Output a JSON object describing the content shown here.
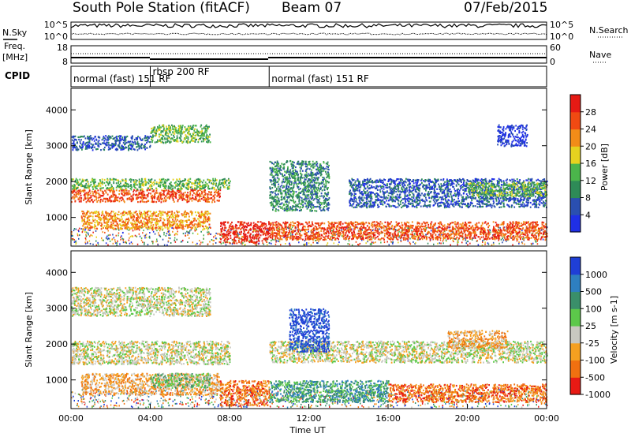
{
  "header": {
    "station": "South Pole Station (fitACF)",
    "beam": "Beam 07",
    "date": "07/Feb/2015"
  },
  "sky_panel": {
    "left_label": "N.Sky",
    "left_ticks": [
      "10^5",
      "10^0"
    ],
    "right_label": "N.Search",
    "right_ticks": [
      "10^5",
      "10^0"
    ]
  },
  "freq_panel": {
    "left_label_line1": "Freq.",
    "left_label_line2": "[MHz]",
    "left_ticks": [
      "18",
      "8"
    ],
    "right_label": "Nave",
    "right_ticks": [
      "60",
      "0"
    ]
  },
  "cpid_panel": {
    "label": "CPID",
    "segments": [
      {
        "start_hr": 0,
        "end_hr": 4,
        "label": "normal (fast) 151 RF"
      },
      {
        "start_hr": 4,
        "end_hr": 10,
        "label": "rbsp 200 RF"
      },
      {
        "start_hr": 10,
        "end_hr": 24,
        "label": "normal (fast) 151 RF"
      }
    ]
  },
  "chart_data": [
    {
      "type": "heatmap",
      "name": "power",
      "ylabel": "Slant Range [km]",
      "xlabel": "",
      "xlim": [
        0,
        24
      ],
      "ylim": [
        200,
        4600
      ],
      "yticks": [
        1000,
        2000,
        3000,
        4000
      ],
      "colorbar": {
        "label": "Power [dB]",
        "ticks": [
          4,
          8,
          12,
          16,
          20,
          24,
          28
        ],
        "levels": [
          "#1f2fe6",
          "#2a4fb0",
          "#2e8b57",
          "#4bb54b",
          "#e6d21f",
          "#f28c18",
          "#f04a12",
          "#e61a14"
        ]
      },
      "bands": [
        {
          "t0": 0,
          "t1": 7.5,
          "r0": 1450,
          "r1": 1800,
          "level": 6
        },
        {
          "t0": 0,
          "t1": 8,
          "r0": 1800,
          "r1": 2100,
          "level": 3
        },
        {
          "t0": 0,
          "t1": 4,
          "r0": 2900,
          "r1": 3300,
          "level": 1
        },
        {
          "t0": 4,
          "t1": 7,
          "r0": 3100,
          "r1": 3600,
          "level": 3
        },
        {
          "t0": 0.5,
          "t1": 7,
          "r0": 700,
          "r1": 1200,
          "level": 5
        },
        {
          "t0": 7.5,
          "t1": 10,
          "r0": 300,
          "r1": 900,
          "level": 7
        },
        {
          "t0": 10,
          "t1": 24,
          "r0": 400,
          "r1": 900,
          "level": 6
        },
        {
          "t0": 14,
          "t1": 24,
          "r0": 1300,
          "r1": 2100,
          "level": 1
        },
        {
          "t0": 20,
          "t1": 24,
          "r0": 1600,
          "r1": 2000,
          "level": 3
        },
        {
          "t0": 10,
          "t1": 13,
          "r0": 1200,
          "r1": 2600,
          "level": 2
        },
        {
          "t0": 21.5,
          "t1": 23,
          "r0": 3000,
          "r1": 3600,
          "level": 0
        }
      ]
    },
    {
      "type": "heatmap",
      "name": "velocity",
      "ylabel": "Slant Range [km]",
      "xlabel": "Time UT",
      "xlim": [
        0,
        24
      ],
      "ylim": [
        200,
        4600
      ],
      "yticks": [
        1000,
        2000,
        3000,
        4000
      ],
      "xticks": [
        "00:00",
        "04:00",
        "08:00",
        "12:00",
        "16:00",
        "20:00",
        "00:00"
      ],
      "colorbar": {
        "label": "Velocity [m s-1]",
        "ticks": [
          1000,
          500,
          100,
          25,
          -25,
          -100,
          -500,
          -1000
        ],
        "levels": [
          "#1f3fd6",
          "#2e7fc0",
          "#3a8f6a",
          "#5cc84a",
          "#c8c8c0",
          "#f5a020",
          "#f07010",
          "#e81a14"
        ]
      },
      "bands": [
        {
          "t0": 0,
          "t1": 8,
          "r0": 1450,
          "r1": 2100,
          "level": 4
        },
        {
          "t0": 10,
          "t1": 24,
          "r0": 1500,
          "r1": 2100,
          "level": 4
        },
        {
          "t0": 0,
          "t1": 7,
          "r0": 2800,
          "r1": 3600,
          "level": 4
        },
        {
          "t0": 0.5,
          "t1": 7.5,
          "r0": 600,
          "r1": 1200,
          "level": 5
        },
        {
          "t0": 7.5,
          "t1": 10,
          "r0": 300,
          "r1": 1000,
          "level": 6
        },
        {
          "t0": 10,
          "t1": 16,
          "r0": 400,
          "r1": 1000,
          "level": 2
        },
        {
          "t0": 16,
          "t1": 24,
          "r0": 400,
          "r1": 900,
          "level": 6
        },
        {
          "t0": 11,
          "t1": 13,
          "r0": 1800,
          "r1": 3000,
          "level": 0
        },
        {
          "t0": 19,
          "t1": 22,
          "r0": 1900,
          "r1": 2400,
          "level": 5
        },
        {
          "t0": 4,
          "t1": 7,
          "r0": 800,
          "r1": 1200,
          "level": 3
        }
      ]
    }
  ]
}
